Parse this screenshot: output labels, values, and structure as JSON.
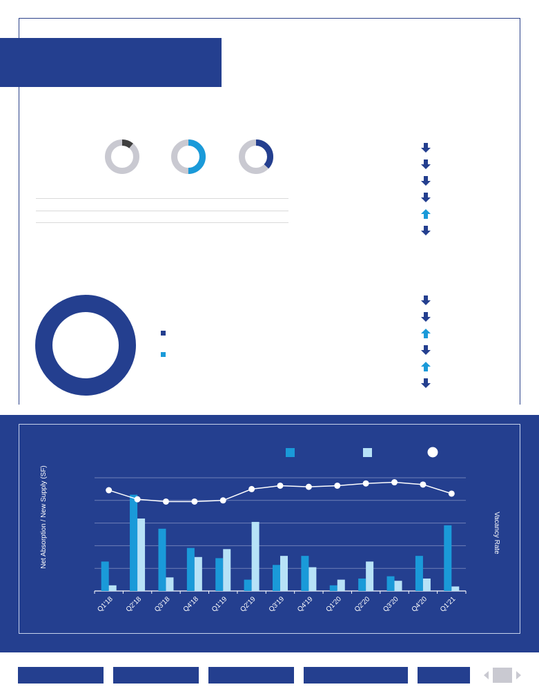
{
  "colors": {
    "navy": "#243f8f",
    "blue": "#1a9ad9",
    "light_blue": "#b7e2f7",
    "grey": "#c9c9d1",
    "dark_grey": "#404040",
    "white": "#ffffff"
  },
  "small_donuts": [
    {
      "icon": "donut-dark-slice",
      "fraction": 0.11,
      "color": "#404040"
    },
    {
      "icon": "donut-blue-half",
      "fraction": 0.5,
      "color": "#1a9ad9"
    },
    {
      "icon": "donut-navy-slice",
      "fraction": 0.37,
      "color": "#243f8f"
    }
  ],
  "trend_arrows_top": [
    "down",
    "down",
    "down",
    "down",
    "up",
    "down"
  ],
  "trend_arrows_bottom": [
    "down",
    "down",
    "up",
    "down",
    "up",
    "down"
  ],
  "big_donut": {
    "fractions": [
      0.95,
      0.05
    ]
  },
  "chart_data": {
    "type": "bar",
    "categories": [
      "Q1'18",
      "Q2'18",
      "Q3'18",
      "Q4'18",
      "Q1'19",
      "Q2'19",
      "Q3'19",
      "Q4'19",
      "Q1'20",
      "Q2'20",
      "Q3'20",
      "Q4'20",
      "Q1'21"
    ],
    "series": [
      {
        "values": [
          2.6,
          8.5,
          5.5,
          3.8,
          2.9,
          1.0,
          2.3,
          3.1,
          0.5,
          1.1,
          1.3,
          3.1,
          5.8
        ]
      },
      {
        "values": [
          0.5,
          6.4,
          1.2,
          3.0,
          3.7,
          6.1,
          3.1,
          2.1,
          1.0,
          2.6,
          0.9,
          1.1,
          0.4
        ]
      },
      {
        "type": "line",
        "axis": "right",
        "values": [
          8.9,
          8.1,
          7.9,
          7.9,
          8.0,
          9.0,
          9.3,
          9.2,
          9.3,
          9.5,
          9.6,
          9.4,
          8.6
        ]
      }
    ],
    "ylabel": "Net Absorption / New Supply (SF)",
    "y2label": "Vacancy Rate",
    "ylim": [
      0,
      10
    ],
    "grid": true,
    "legend": "top-right"
  },
  "footer": {
    "nav_buttons": 5,
    "pager_icons": [
      "chevron-left-icon",
      "page-icon",
      "chevron-right-icon"
    ]
  }
}
